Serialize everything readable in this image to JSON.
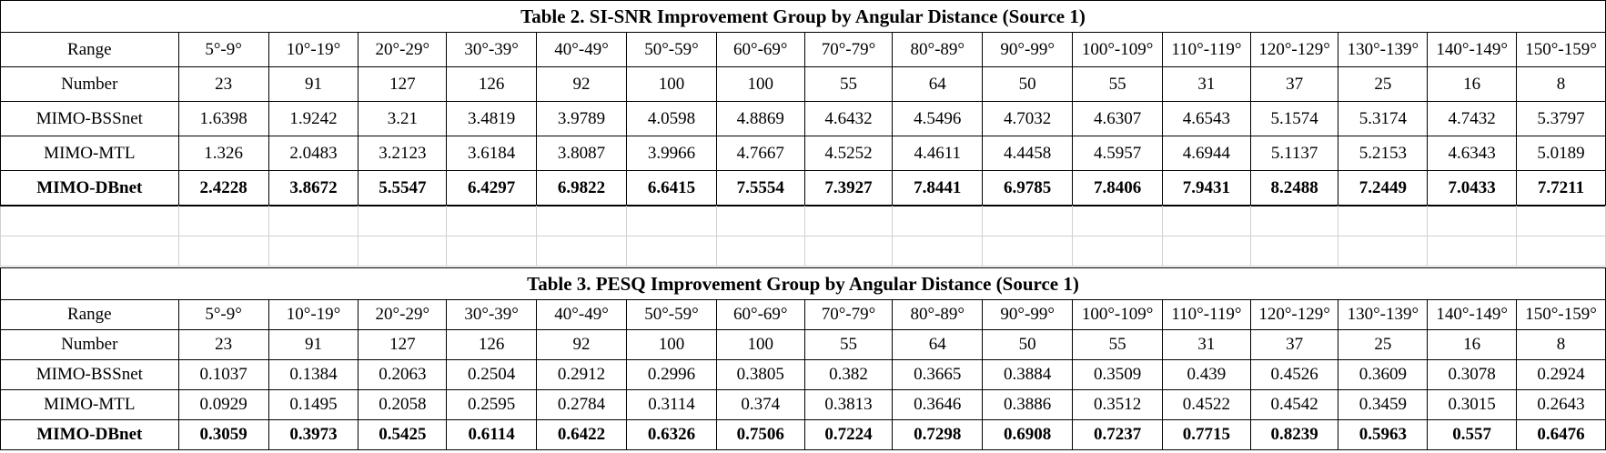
{
  "table2": {
    "title": "Table 2. SI-SNR Improvement Group by Angular Distance (Source 1)",
    "rows": [
      {
        "label": "Range",
        "bold": false,
        "cells": [
          "5°-9°",
          "10°-19°",
          "20°-29°",
          "30°-39°",
          "40°-49°",
          "50°-59°",
          "60°-69°",
          "70°-79°",
          "80°-89°",
          "90°-99°",
          "100°-109°",
          "110°-119°",
          "120°-129°",
          "130°-139°",
          "140°-149°",
          "150°-159°"
        ]
      },
      {
        "label": "Number",
        "bold": false,
        "cells": [
          "23",
          "91",
          "127",
          "126",
          "92",
          "100",
          "100",
          "55",
          "64",
          "50",
          "55",
          "31",
          "37",
          "25",
          "16",
          "8"
        ]
      },
      {
        "label": "MIMO-BSSnet",
        "bold": false,
        "cells": [
          "1.6398",
          "1.9242",
          "3.21",
          "3.4819",
          "3.9789",
          "4.0598",
          "4.8869",
          "4.6432",
          "4.5496",
          "4.7032",
          "4.6307",
          "4.6543",
          "5.1574",
          "5.3174",
          "4.7432",
          "5.3797"
        ]
      },
      {
        "label": "MIMO-MTL",
        "bold": false,
        "cells": [
          "1.326",
          "2.0483",
          "3.2123",
          "3.6184",
          "3.8087",
          "3.9966",
          "4.7667",
          "4.5252",
          "4.4611",
          "4.4458",
          "4.5957",
          "4.6944",
          "5.1137",
          "5.2153",
          "4.6343",
          "5.0189"
        ]
      },
      {
        "label": "MIMO-DBnet",
        "bold": true,
        "cells": [
          "2.4228",
          "3.8672",
          "5.5547",
          "6.4297",
          "6.9822",
          "6.6415",
          "7.5554",
          "7.3927",
          "7.8441",
          "6.9785",
          "7.8406",
          "7.9431",
          "8.2488",
          "7.2449",
          "7.0433",
          "7.7211"
        ]
      }
    ]
  },
  "table3": {
    "title": "Table 3. PESQ Improvement Group by Angular Distance (Source 1)",
    "rows": [
      {
        "label": "Range",
        "bold": false,
        "cells": [
          "5°-9°",
          "10°-19°",
          "20°-29°",
          "30°-39°",
          "40°-49°",
          "50°-59°",
          "60°-69°",
          "70°-79°",
          "80°-89°",
          "90°-99°",
          "100°-109°",
          "110°-119°",
          "120°-129°",
          "130°-139°",
          "140°-149°",
          "150°-159°"
        ]
      },
      {
        "label": "Number",
        "bold": false,
        "cells": [
          "23",
          "91",
          "127",
          "126",
          "92",
          "100",
          "100",
          "55",
          "64",
          "50",
          "55",
          "31",
          "37",
          "25",
          "16",
          "8"
        ]
      },
      {
        "label": "MIMO-BSSnet",
        "bold": false,
        "cells": [
          "0.1037",
          "0.1384",
          "0.2063",
          "0.2504",
          "0.2912",
          "0.2996",
          "0.3805",
          "0.382",
          "0.3665",
          "0.3884",
          "0.3509",
          "0.439",
          "0.4526",
          "0.3609",
          "0.3078",
          "0.2924"
        ]
      },
      {
        "label": "MIMO-MTL",
        "bold": false,
        "cells": [
          "0.0929",
          "0.1495",
          "0.2058",
          "0.2595",
          "0.2784",
          "0.3114",
          "0.374",
          "0.3813",
          "0.3646",
          "0.3886",
          "0.3512",
          "0.4522",
          "0.4542",
          "0.3459",
          "0.3015",
          "0.2643"
        ]
      },
      {
        "label": "MIMO-DBnet",
        "bold": true,
        "cells": [
          "0.3059",
          "0.3973",
          "0.5425",
          "0.6114",
          "0.6422",
          "0.6326",
          "0.7506",
          "0.7224",
          "0.7298",
          "0.6908",
          "0.7237",
          "0.7715",
          "0.8239",
          "0.5963",
          "0.557",
          "0.6476"
        ]
      }
    ]
  }
}
